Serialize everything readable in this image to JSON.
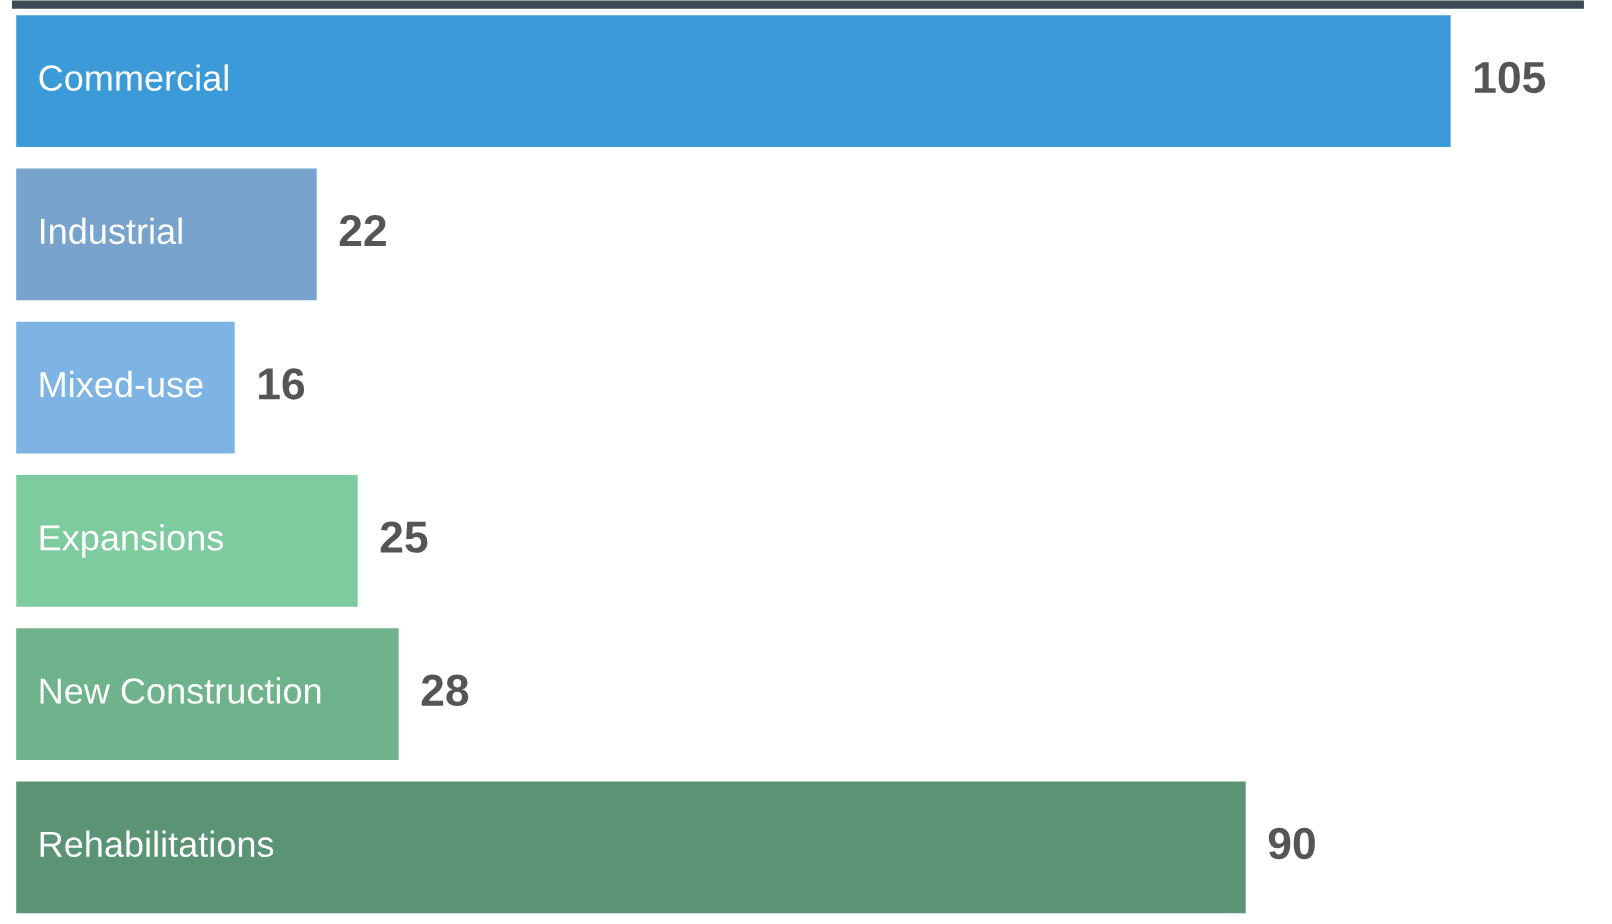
{
  "chart_data": {
    "type": "bar",
    "orientation": "horizontal",
    "data_labels": true,
    "legend": false,
    "categories": [
      "Commercial",
      "Industrial",
      "Mixed-use",
      "Expansions",
      "New Construction",
      "Rehabilitations"
    ],
    "values": [
      105,
      22,
      16,
      25,
      28,
      90
    ],
    "colors": [
      "#3d9ad9",
      "#77a3cc",
      "#7db4e3",
      "#7ecba0",
      "#6eb38c",
      "#5a9475"
    ]
  }
}
